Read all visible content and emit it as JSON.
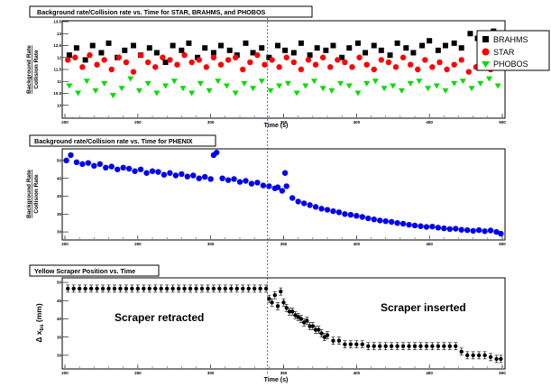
{
  "chart_data": [
    {
      "type": "scatter",
      "title": "Background rate/Collision rate vs. Time for STAR, BRAHMS, and PHOBOS",
      "xlabel": "Time (s)",
      "ylabel": [
        "Background Rate",
        "Collision Rate"
      ],
      "xlim": [
        200,
        500
      ],
      "ylim": [
        9.5,
        13.5
      ],
      "xticks": [
        "200",
        "250",
        "300",
        "350",
        "400",
        "450",
        "500"
      ],
      "yticks": [
        "10",
        "10.5",
        "11",
        "11.5",
        "12",
        "12.5",
        "13",
        "13.5"
      ],
      "legend": [
        "BRAHMS",
        "STAR",
        "PHOBOS"
      ],
      "legend_placement": "top-right",
      "series": [
        {
          "name": "BRAHMS",
          "marker": "square",
          "color": "#000000",
          "x": [
            203,
            208,
            214,
            219,
            225,
            230,
            236,
            241,
            247,
            252,
            258,
            263,
            269,
            274,
            280,
            285,
            291,
            296,
            302,
            307,
            313,
            318,
            324,
            329,
            335,
            340,
            346,
            351,
            357,
            362,
            368,
            373,
            379,
            384,
            390,
            395,
            401,
            406,
            412,
            417,
            423,
            428,
            434,
            439,
            445,
            450,
            456,
            461,
            467,
            472,
            478,
            483,
            489,
            494,
            499
          ],
          "y": [
            12.1,
            12.4,
            11.9,
            12.5,
            12.2,
            12.6,
            12.0,
            12.3,
            12.5,
            12.1,
            12.4,
            12.2,
            11.8,
            12.5,
            12.3,
            12.6,
            12.0,
            12.4,
            12.2,
            12.5,
            12.3,
            12.1,
            12.6,
            12.2,
            12.4,
            12.0,
            12.5,
            12.3,
            12.2,
            12.6,
            12.1,
            12.4,
            12.3,
            12.5,
            12.0,
            12.4,
            12.6,
            12.2,
            12.5,
            12.3,
            12.1,
            12.6,
            12.4,
            12.2,
            12.5,
            12.7,
            12.3,
            12.5,
            12.6,
            12.4,
            13.0,
            12.8,
            12.5,
            13.1,
            12.9
          ]
        },
        {
          "name": "STAR",
          "marker": "circle",
          "color": "#ff0000",
          "x": [
            202,
            207,
            212,
            217,
            222,
            227,
            232,
            237,
            242,
            247,
            252,
            257,
            262,
            267,
            272,
            277,
            282,
            287,
            292,
            297,
            302,
            307,
            312,
            317,
            322,
            327,
            332,
            337,
            342,
            347,
            352,
            357,
            362,
            367,
            372,
            377,
            382,
            387,
            392,
            397,
            402,
            407,
            412,
            417,
            422,
            427,
            432,
            437,
            442,
            447,
            452,
            457,
            462,
            467,
            472,
            477,
            482,
            487,
            492,
            497
          ],
          "y": [
            11.9,
            12.0,
            11.6,
            12.1,
            11.7,
            11.9,
            11.5,
            12.0,
            11.8,
            11.4,
            12.1,
            11.8,
            11.6,
            12.0,
            11.9,
            11.7,
            12.1,
            11.8,
            11.9,
            11.6,
            12.0,
            11.7,
            11.9,
            12.0,
            11.5,
            11.8,
            12.1,
            11.7,
            11.9,
            11.6,
            12.0,
            11.8,
            11.5,
            11.9,
            11.7,
            12.0,
            11.6,
            11.9,
            11.8,
            11.6,
            12.0,
            11.7,
            11.5,
            11.9,
            11.8,
            11.6,
            12.0,
            11.7,
            11.5,
            11.9,
            11.6,
            11.8,
            11.5,
            11.7,
            11.9,
            11.4,
            11.6,
            11.8,
            11.5,
            11.7
          ]
        },
        {
          "name": "PHOBOS",
          "marker": "triangle-down",
          "color": "#00dd00",
          "x": [
            203,
            209,
            215,
            221,
            227,
            233,
            239,
            245,
            251,
            257,
            263,
            269,
            275,
            281,
            287,
            293,
            299,
            305,
            311,
            317,
            323,
            329,
            335,
            341,
            347,
            353,
            359,
            365,
            371,
            377,
            383,
            389,
            395,
            401,
            407,
            413,
            419,
            425,
            431,
            437,
            443,
            449,
            455,
            461,
            467,
            473,
            479,
            485,
            491,
            497
          ],
          "y": [
            10.8,
            10.5,
            11.0,
            10.6,
            10.9,
            10.4,
            10.7,
            11.1,
            10.6,
            10.9,
            10.5,
            10.8,
            11.0,
            10.7,
            10.5,
            10.9,
            10.6,
            11.0,
            10.8,
            10.5,
            10.9,
            10.7,
            11.0,
            10.6,
            10.8,
            10.9,
            10.5,
            10.8,
            11.0,
            10.7,
            10.6,
            10.9,
            10.8,
            10.5,
            10.9,
            11.0,
            10.7,
            10.8,
            10.6,
            10.9,
            11.0,
            10.7,
            10.8,
            10.6,
            10.9,
            11.0,
            10.7,
            10.9,
            11.1,
            10.8
          ]
        }
      ],
      "marker_line_x": 339,
      "grid": false
    },
    {
      "type": "scatter",
      "title": "Background rate/Collision rate vs. Time for PHENIX",
      "xlabel": "",
      "ylabel": [
        "Background Rate",
        "Collision Rate"
      ],
      "xlim": [
        200,
        500
      ],
      "ylim": [
        28,
        53
      ],
      "xticks": [
        "200",
        "250",
        "300",
        "350",
        "400",
        "450",
        "500"
      ],
      "yticks": [
        "30",
        "35",
        "40",
        "45",
        "50"
      ],
      "series": [
        {
          "marker": "circle",
          "color": "#0000ee",
          "x": [
            201,
            204,
            208,
            212,
            216,
            220,
            224,
            228,
            232,
            236,
            240,
            244,
            248,
            252,
            256,
            260,
            264,
            268,
            272,
            276,
            280,
            284,
            288,
            292,
            296,
            300,
            302,
            304,
            308,
            312,
            316,
            320,
            324,
            328,
            332,
            336,
            340,
            344,
            346,
            349,
            351,
            352,
            356,
            360,
            364,
            368,
            372,
            376,
            380,
            384,
            388,
            392,
            396,
            400,
            404,
            408,
            412,
            416,
            420,
            424,
            428,
            432,
            436,
            440,
            444,
            448,
            452,
            456,
            460,
            464,
            468,
            472,
            476,
            480,
            484,
            488,
            492,
            496,
            499
          ],
          "y": [
            50,
            51.5,
            49.5,
            49,
            49.3,
            48.5,
            49,
            48,
            48.3,
            47.5,
            48,
            47.7,
            47,
            47.5,
            46.5,
            47,
            46.8,
            46,
            46.5,
            45.8,
            46.2,
            45.5,
            45.8,
            45,
            45.4,
            44.8,
            51.5,
            52.2,
            45,
            44.5,
            44.8,
            44,
            44.3,
            43.5,
            43.8,
            43,
            42.8,
            42.2,
            42.5,
            41.5,
            46.5,
            42.8,
            39.5,
            38.5,
            38,
            37.5,
            37,
            36.5,
            36.2,
            35.8,
            35.5,
            35,
            34.8,
            34.5,
            34.2,
            33.8,
            33.5,
            33.2,
            33,
            32.8,
            32.5,
            32.3,
            32,
            31.8,
            31.6,
            31.4,
            31.5,
            31.2,
            31,
            30.8,
            30.9,
            30.6,
            30.5,
            30.3,
            30.5,
            30.2,
            30.4,
            30,
            29.5
          ]
        }
      ],
      "marker_line_x": 339,
      "grid": false
    },
    {
      "type": "scatter",
      "title": "Yellow Scraper Position vs. Time",
      "xlabel": "Time (s)",
      "ylabel": "Δ x_bs (mm)",
      "xlim": [
        200,
        500
      ],
      "ylim": [
        26.5,
        51
      ],
      "xticks": [
        "200",
        "250",
        "300",
        "350",
        "400",
        "450",
        "500"
      ],
      "yticks": [
        "30",
        "35",
        "40",
        "45",
        "50"
      ],
      "annotations": [
        "Scraper retracted",
        "Scraper inserted"
      ],
      "series": [
        {
          "marker": "circle-errorbar",
          "color": "#000000",
          "x": [
            202,
            206,
            210,
            214,
            218,
            222,
            226,
            230,
            234,
            238,
            242,
            246,
            250,
            254,
            258,
            262,
            266,
            270,
            274,
            278,
            282,
            286,
            290,
            294,
            298,
            302,
            306,
            310,
            314,
            318,
            322,
            326,
            330,
            334,
            338,
            340,
            342,
            344,
            346,
            348,
            350,
            352,
            354,
            356,
            358,
            360,
            362,
            364,
            366,
            368,
            370,
            372,
            374,
            376,
            378,
            380,
            384,
            388,
            392,
            396,
            400,
            404,
            408,
            412,
            416,
            420,
            424,
            428,
            432,
            436,
            440,
            444,
            448,
            452,
            456,
            460,
            464,
            468,
            472,
            476,
            480,
            484,
            488,
            492,
            496,
            499
          ],
          "y": [
            48.3,
            48.3,
            48.3,
            48.3,
            48.3,
            48.3,
            48.3,
            48.3,
            48.3,
            48.3,
            48.3,
            48.3,
            48.3,
            48.3,
            48.3,
            48.3,
            48.3,
            48.3,
            48.3,
            48.3,
            48.3,
            48.3,
            48.3,
            48.3,
            48.3,
            48.3,
            48.3,
            48.3,
            48.3,
            48.3,
            48.3,
            48.3,
            48.3,
            48.3,
            48.3,
            45.5,
            44.5,
            46.5,
            43.5,
            47.5,
            44.5,
            43,
            42,
            42,
            41,
            40.5,
            40,
            39,
            39.5,
            38,
            38,
            37,
            37,
            36,
            35,
            35.5,
            34,
            34,
            33,
            33,
            33,
            33,
            32.5,
            32.5,
            32.5,
            32.5,
            32.5,
            32.5,
            32.5,
            32.5,
            32.5,
            32.5,
            32.5,
            32.5,
            32.5,
            32.5,
            32.5,
            32.5,
            31,
            30,
            30,
            30,
            30,
            29.5,
            29,
            29
          ]
        }
      ],
      "marker_line_x": 339,
      "grid": false
    }
  ]
}
